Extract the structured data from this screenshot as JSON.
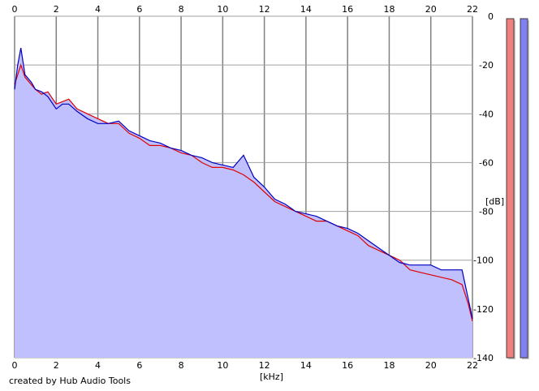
{
  "credit": "created by Hub Audio Tools",
  "chart_data": {
    "type": "area",
    "xlabel": "[kHz]",
    "ylabel": "[dB]",
    "xlim": [
      0,
      22
    ],
    "ylim": [
      -140,
      0
    ],
    "x_ticks": [
      0,
      2,
      4,
      6,
      8,
      10,
      12,
      14,
      16,
      18,
      20,
      22
    ],
    "y_ticks": [
      0,
      -20,
      -40,
      -60,
      -80,
      -100,
      -120,
      -140
    ],
    "grid": true,
    "series": [
      {
        "color": "#e00000",
        "x": [
          0,
          0.15,
          0.3,
          0.5,
          0.8,
          1.0,
          1.3,
          1.6,
          2.0,
          2.3,
          2.6,
          3.0,
          3.5,
          4.0,
          4.5,
          5.0,
          5.5,
          6.0,
          6.5,
          7.0,
          7.5,
          8.0,
          8.5,
          9.0,
          9.5,
          10.0,
          10.5,
          11.0,
          11.5,
          12.0,
          12.5,
          13.0,
          13.5,
          14.0,
          14.5,
          15.0,
          15.5,
          16.0,
          16.5,
          17.0,
          17.5,
          18.0,
          18.5,
          19.0,
          19.5,
          20.0,
          20.5,
          21.0,
          21.5,
          21.8,
          22.0
        ],
        "y": [
          -28,
          -24,
          -20,
          -25,
          -28,
          -30,
          -32,
          -31,
          -36,
          -35,
          -34,
          -38,
          -40,
          -42,
          -44,
          -44,
          -48,
          -50,
          -53,
          -53,
          -54,
          -56,
          -57,
          -60,
          -62,
          -62,
          -63,
          -65,
          -68,
          -72,
          -76,
          -78,
          -80,
          -82,
          -84,
          -84,
          -86,
          -88,
          -90,
          -94,
          -96,
          -98,
          -100,
          -104,
          -105,
          -106,
          -107,
          -108,
          -110,
          -118,
          -125
        ]
      },
      {
        "color": "#0000c0",
        "x": [
          0,
          0.15,
          0.3,
          0.5,
          0.8,
          1.0,
          1.3,
          1.6,
          2.0,
          2.3,
          2.6,
          3.0,
          3.5,
          4.0,
          4.5,
          5.0,
          5.5,
          6.0,
          6.5,
          7.0,
          7.5,
          8.0,
          8.5,
          9.0,
          9.5,
          10.0,
          10.5,
          11.0,
          11.5,
          12.0,
          12.5,
          13.0,
          13.5,
          14.0,
          14.5,
          15.0,
          15.5,
          16.0,
          16.5,
          17.0,
          17.5,
          18.0,
          18.5,
          19.0,
          19.5,
          20.0,
          20.5,
          21.0,
          21.5,
          21.8,
          22.0
        ],
        "y": [
          -30,
          -20,
          -13,
          -24,
          -27,
          -30,
          -31,
          -33,
          -38,
          -36,
          -36,
          -39,
          -42,
          -44,
          -44,
          -43,
          -47,
          -49,
          -51,
          -52,
          -54,
          -55,
          -57,
          -58,
          -60,
          -61,
          -62,
          -57,
          -66,
          -70,
          -75,
          -77,
          -80,
          -81,
          -82,
          -84,
          -86,
          -87,
          -89,
          -92,
          -95,
          -98,
          -101,
          -102,
          -102,
          -102,
          -104,
          -104,
          -104,
          -116,
          -124
        ]
      }
    ],
    "fill_color": "#c0c0ff",
    "level_meters": [
      {
        "color": "#f08080",
        "level": 1.0
      },
      {
        "color": "#8080f0",
        "level": 1.0
      }
    ]
  }
}
